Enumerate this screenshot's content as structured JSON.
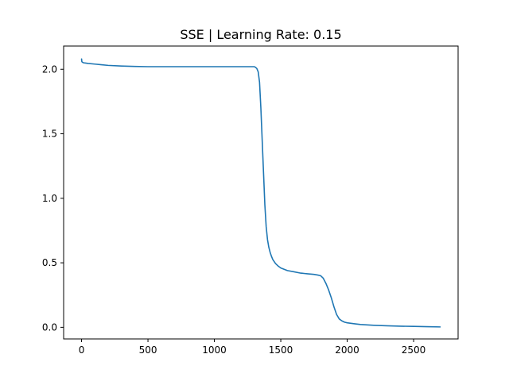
{
  "chart_data": {
    "type": "line",
    "title": "SSE | Learning Rate: 0.15",
    "xlabel": "",
    "ylabel": "",
    "xlim": [
      -135,
      2835
    ],
    "ylim": [
      -0.09,
      2.18
    ],
    "x_ticks": [
      0,
      500,
      1000,
      1500,
      2000,
      2500
    ],
    "x_tick_labels": [
      "0",
      "500",
      "1000",
      "1500",
      "2000",
      "2500"
    ],
    "y_ticks": [
      0.0,
      0.5,
      1.0,
      1.5,
      2.0
    ],
    "y_tick_labels": [
      "0.0",
      "0.5",
      "1.0",
      "1.5",
      "2.0"
    ],
    "grid": false,
    "series": [
      {
        "color": "#1f77b4",
        "x": [
          0,
          2,
          6,
          15,
          30,
          50,
          100,
          150,
          200,
          300,
          400,
          500,
          700,
          900,
          1100,
          1200,
          1250,
          1280,
          1300,
          1310,
          1320,
          1330,
          1340,
          1350,
          1360,
          1370,
          1380,
          1390,
          1400,
          1410,
          1420,
          1430,
          1440,
          1450,
          1460,
          1480,
          1500,
          1550,
          1600,
          1650,
          1700,
          1750,
          1780,
          1800,
          1820,
          1840,
          1860,
          1880,
          1900,
          1920,
          1940,
          1960,
          1980,
          2000,
          2050,
          2100,
          2200,
          2300,
          2400,
          2500,
          2600,
          2700
        ],
        "y": [
          2.08,
          2.06,
          2.055,
          2.05,
          2.048,
          2.045,
          2.04,
          2.035,
          2.03,
          2.025,
          2.022,
          2.02,
          2.02,
          2.02,
          2.02,
          2.02,
          2.02,
          2.02,
          2.02,
          2.015,
          2.005,
          1.98,
          1.9,
          1.7,
          1.45,
          1.2,
          0.95,
          0.78,
          0.68,
          0.62,
          0.58,
          0.55,
          0.525,
          0.51,
          0.495,
          0.475,
          0.46,
          0.44,
          0.43,
          0.42,
          0.415,
          0.41,
          0.405,
          0.4,
          0.38,
          0.34,
          0.29,
          0.23,
          0.16,
          0.1,
          0.065,
          0.05,
          0.04,
          0.035,
          0.028,
          0.022,
          0.016,
          0.012,
          0.009,
          0.007,
          0.005,
          0.003
        ]
      }
    ]
  }
}
